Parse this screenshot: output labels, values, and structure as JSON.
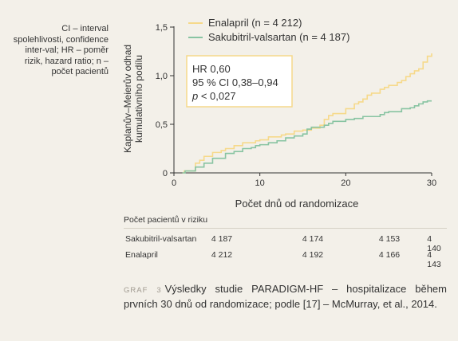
{
  "side_note": "CI – interval spolehlivosti, confidence inter-val; HR – poměr rizik, hazard ratio; n – počet pacientů",
  "colors": {
    "enalapril": "#f6d98a",
    "sakubitril": "#88c4a2",
    "axis": "#333333",
    "hr_box": "#f6d98a"
  },
  "chart_data": {
    "type": "line",
    "title": "",
    "xlabel": "Počet dnů od randomizace",
    "ylabel_lines": [
      "Kaplanův–Meierův odhad",
      "kumulativního podílu"
    ],
    "xlim": [
      0,
      30
    ],
    "ylim": [
      0,
      1.5
    ],
    "xticks": [
      0,
      10,
      20,
      30
    ],
    "xtick_labels": [
      "0",
      "10",
      "20",
      "30"
    ],
    "yticks": [
      0,
      0.5,
      1.0,
      1.5
    ],
    "ytick_labels": [
      "0",
      "0,5",
      "1,0",
      "1,5"
    ],
    "legend_position": "top",
    "series": [
      {
        "name": "Enalapril (n = 4 212)",
        "points": [
          [
            1,
            0
          ],
          [
            1.2,
            0.02
          ],
          [
            2.5,
            0.1
          ],
          [
            3,
            0.13
          ],
          [
            3.5,
            0.17
          ],
          [
            4.5,
            0.21
          ],
          [
            5.5,
            0.23
          ],
          [
            6,
            0.25
          ],
          [
            7,
            0.28
          ],
          [
            8,
            0.31
          ],
          [
            9.5,
            0.33
          ],
          [
            10,
            0.34
          ],
          [
            11,
            0.37
          ],
          [
            12.5,
            0.39
          ],
          [
            13,
            0.4
          ],
          [
            14,
            0.43
          ],
          [
            15,
            0.44
          ],
          [
            16,
            0.46
          ],
          [
            17,
            0.49
          ],
          [
            17.5,
            0.55
          ],
          [
            18,
            0.59
          ],
          [
            18.5,
            0.61
          ],
          [
            20,
            0.66
          ],
          [
            21,
            0.71
          ],
          [
            21.5,
            0.73
          ],
          [
            22,
            0.76
          ],
          [
            22.5,
            0.8
          ],
          [
            23,
            0.82
          ],
          [
            24,
            0.86
          ],
          [
            24.5,
            0.88
          ],
          [
            25,
            0.9
          ],
          [
            26,
            0.93
          ],
          [
            26.5,
            0.95
          ],
          [
            27,
            0.99
          ],
          [
            27.5,
            1.02
          ],
          [
            28,
            1.05
          ],
          [
            28.5,
            1.07
          ],
          [
            29,
            1.14
          ],
          [
            29.5,
            1.2
          ],
          [
            30,
            1.23
          ]
        ]
      },
      {
        "name": "Sakubitril-valsartan (n = 4 187)",
        "points": [
          [
            1,
            0
          ],
          [
            1.3,
            0.02
          ],
          [
            2.5,
            0.06
          ],
          [
            3.5,
            0.1
          ],
          [
            4.5,
            0.15
          ],
          [
            6,
            0.2
          ],
          [
            7,
            0.22
          ],
          [
            8,
            0.25
          ],
          [
            9,
            0.26
          ],
          [
            9.5,
            0.28
          ],
          [
            10,
            0.29
          ],
          [
            11,
            0.31
          ],
          [
            12,
            0.33
          ],
          [
            13,
            0.36
          ],
          [
            14,
            0.38
          ],
          [
            15,
            0.4
          ],
          [
            15.5,
            0.45
          ],
          [
            16,
            0.47
          ],
          [
            17.5,
            0.49
          ],
          [
            18,
            0.51
          ],
          [
            18.5,
            0.53
          ],
          [
            20,
            0.55
          ],
          [
            21,
            0.56
          ],
          [
            22,
            0.58
          ],
          [
            23,
            0.58
          ],
          [
            24,
            0.6
          ],
          [
            24.5,
            0.62
          ],
          [
            25,
            0.63
          ],
          [
            26,
            0.63
          ],
          [
            26.5,
            0.66
          ],
          [
            27.5,
            0.67
          ],
          [
            28,
            0.69
          ],
          [
            28.5,
            0.71
          ],
          [
            29,
            0.73
          ],
          [
            29.5,
            0.74
          ],
          [
            30,
            0.74
          ]
        ]
      }
    ],
    "annotation": {
      "line1": "HR 0,60",
      "line2": "95 % CI 0,38–0,94",
      "line3_italic": "p",
      "line3_rest": " < 0,027"
    }
  },
  "risk_table": {
    "title": "Počet pacientů v riziku",
    "rows": [
      {
        "label": "Sakubitril-valsartan",
        "values": [
          "4 187",
          "4 174",
          "4 153",
          "4 140"
        ]
      },
      {
        "label": "Enalapril",
        "values": [
          "4 212",
          "4 192",
          "4 166",
          "4 143"
        ]
      }
    ]
  },
  "caption": {
    "graf_label": "GRAF 3",
    "text": "Výsledky studie PARADIGM-HF – hospitalizace během prvních 30 dnů od randomizace; podle [17] – McMurray, et al., 2014."
  }
}
